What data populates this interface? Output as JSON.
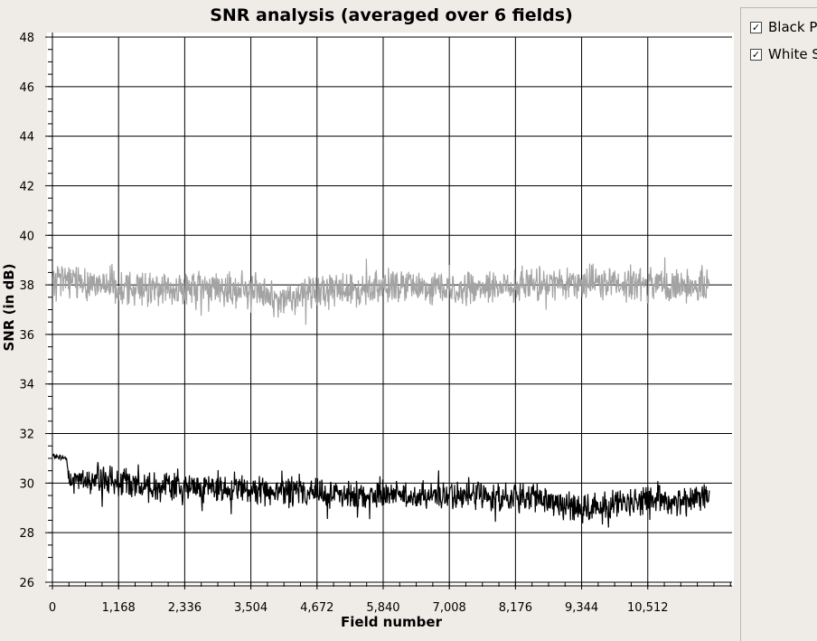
{
  "chart_data": {
    "type": "line",
    "title": "SNR analysis (averaged over 6 fields)",
    "xlabel": "Field number",
    "ylabel": "SNR (in dB)",
    "xlim": [
      0,
      12000
    ],
    "ylim": [
      26,
      48
    ],
    "x_ticks": [
      "0",
      "1,168",
      "2,336",
      "3,504",
      "4,672",
      "5,840",
      "7,008",
      "8,176",
      "9,344",
      "10,512"
    ],
    "y_ticks": [
      "26",
      "28",
      "30",
      "32",
      "34",
      "36",
      "38",
      "40",
      "42",
      "44",
      "46",
      "48"
    ],
    "grid": true,
    "legend_position": "right",
    "series": [
      {
        "name": "Black PSNR",
        "color": "#000000",
        "x": [
          0,
          250,
          300,
          600,
          1200,
          2400,
          3600,
          4800,
          6000,
          7200,
          8400,
          8800,
          9300,
          9800,
          10300,
          11000,
          11600
        ],
        "values": [
          31.1,
          31.0,
          30.0,
          30.2,
          30.0,
          29.8,
          29.7,
          29.6,
          29.5,
          29.5,
          29.4,
          29.3,
          29.0,
          29.1,
          29.3,
          29.3,
          29.5
        ]
      },
      {
        "name": "White SNR",
        "color": "#a3a3a3",
        "x": [
          0,
          1200,
          2400,
          3600,
          4000,
          4200,
          4800,
          6000,
          7200,
          8400,
          9300,
          10500,
          11000,
          11600
        ],
        "values": [
          38.3,
          37.9,
          37.8,
          37.8,
          37.3,
          37.5,
          37.8,
          37.9,
          37.9,
          38.0,
          38.1,
          38.0,
          38.0,
          38.0
        ]
      }
    ]
  },
  "legend": {
    "items": [
      {
        "label": "Black PSNR",
        "check": "✓"
      },
      {
        "label": "White SNR",
        "check": "✓"
      }
    ]
  }
}
